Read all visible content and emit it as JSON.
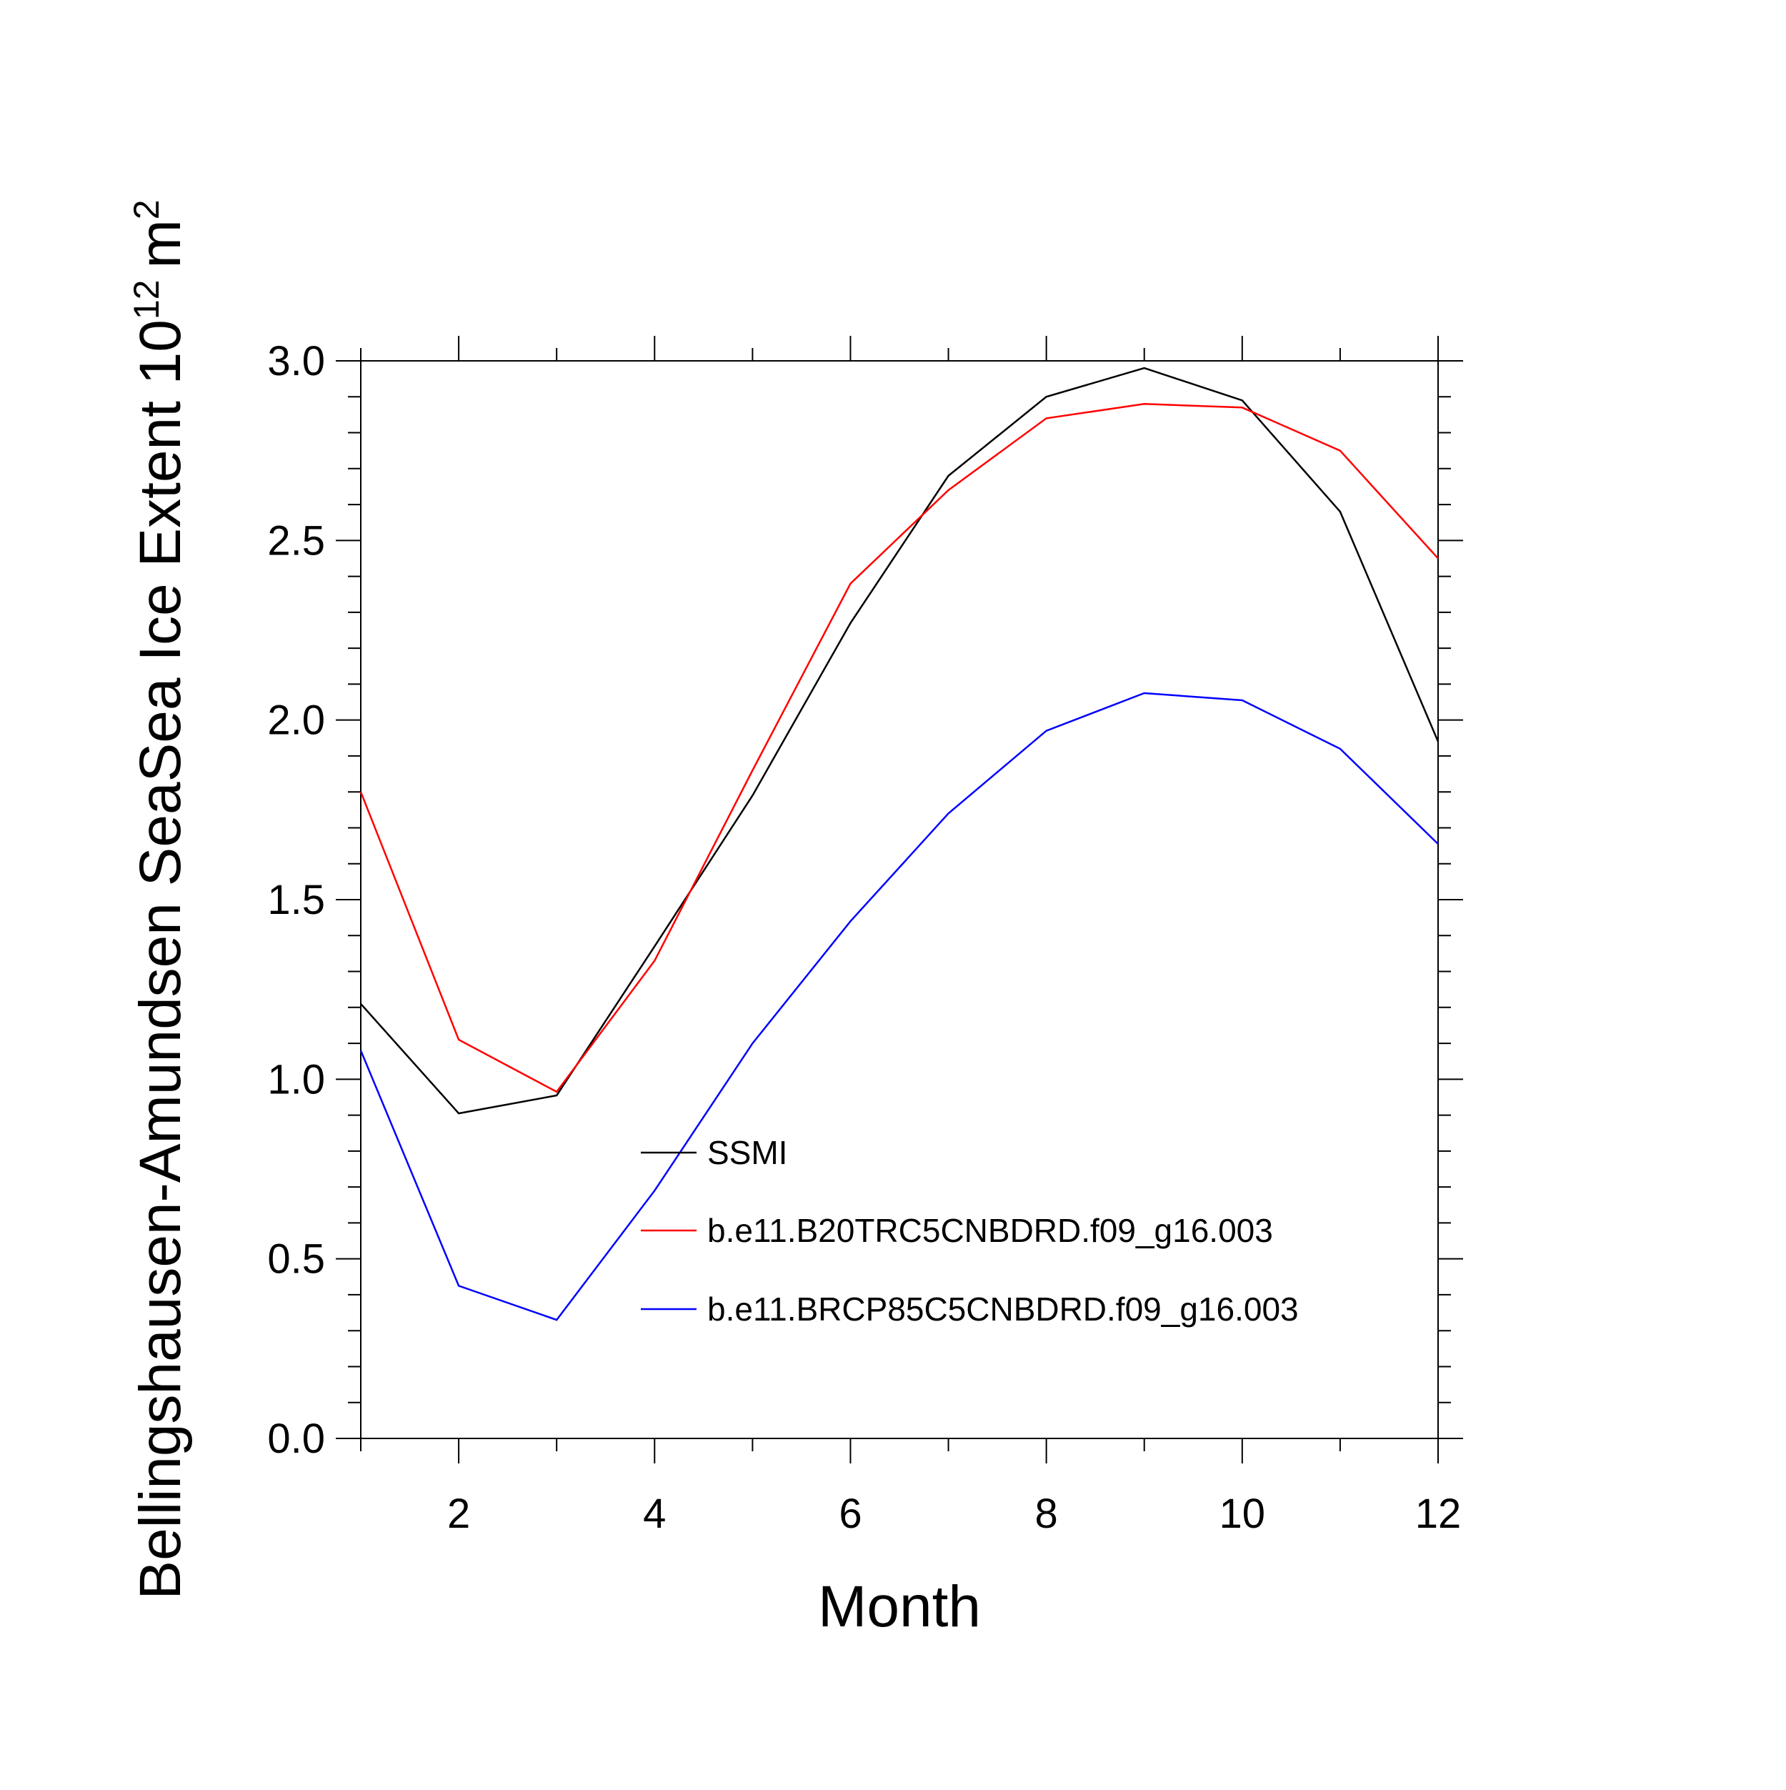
{
  "chart_data": {
    "type": "line",
    "title": "",
    "xlabel": "Month",
    "ylabel": {
      "main": "Bellingshausen-Amundsen SeaSea Ice Extent 10",
      "superscript": "12",
      "unit": "m",
      "unit_superscript": "2"
    },
    "xlim": [
      1,
      12
    ],
    "ylim": [
      0,
      3
    ],
    "x_ticks": [
      2,
      4,
      6,
      8,
      10,
      12
    ],
    "x_tick_labels": [
      "2",
      "4",
      "6",
      "8",
      "10",
      "12"
    ],
    "y_ticks": [
      0,
      0.5,
      1,
      1.5,
      2,
      2.5,
      3
    ],
    "y_tick_labels": [
      "0.0",
      "0.5",
      "1.0",
      "1.5",
      "2.0",
      "2.5",
      "3.0"
    ],
    "x": [
      1,
      2,
      3,
      4,
      5,
      6,
      7,
      8,
      9,
      10,
      11,
      12
    ],
    "series": [
      {
        "name": "SSMI",
        "color": "#000000",
        "values": [
          1.21,
          0.905,
          0.955,
          1.37,
          1.79,
          2.27,
          2.68,
          2.9,
          2.98,
          2.89,
          2.58,
          1.94
        ]
      },
      {
        "name": "b.e11.B20TRC5CNBDRD.f09_g16.003",
        "color": "#ff0000",
        "values": [
          1.8,
          1.11,
          0.965,
          1.33,
          1.86,
          2.38,
          2.64,
          2.84,
          2.88,
          2.87,
          2.75,
          2.45
        ]
      },
      {
        "name": "b.e11.BRCP85C5CNBDRD.f09_g16.003",
        "color": "#0000ff",
        "values": [
          1.08,
          0.425,
          0.33,
          0.69,
          1.1,
          1.44,
          1.74,
          1.97,
          2.075,
          2.055,
          1.92,
          1.655
        ]
      }
    ],
    "legend_position": "lower-center inside plot",
    "grid": false
  }
}
